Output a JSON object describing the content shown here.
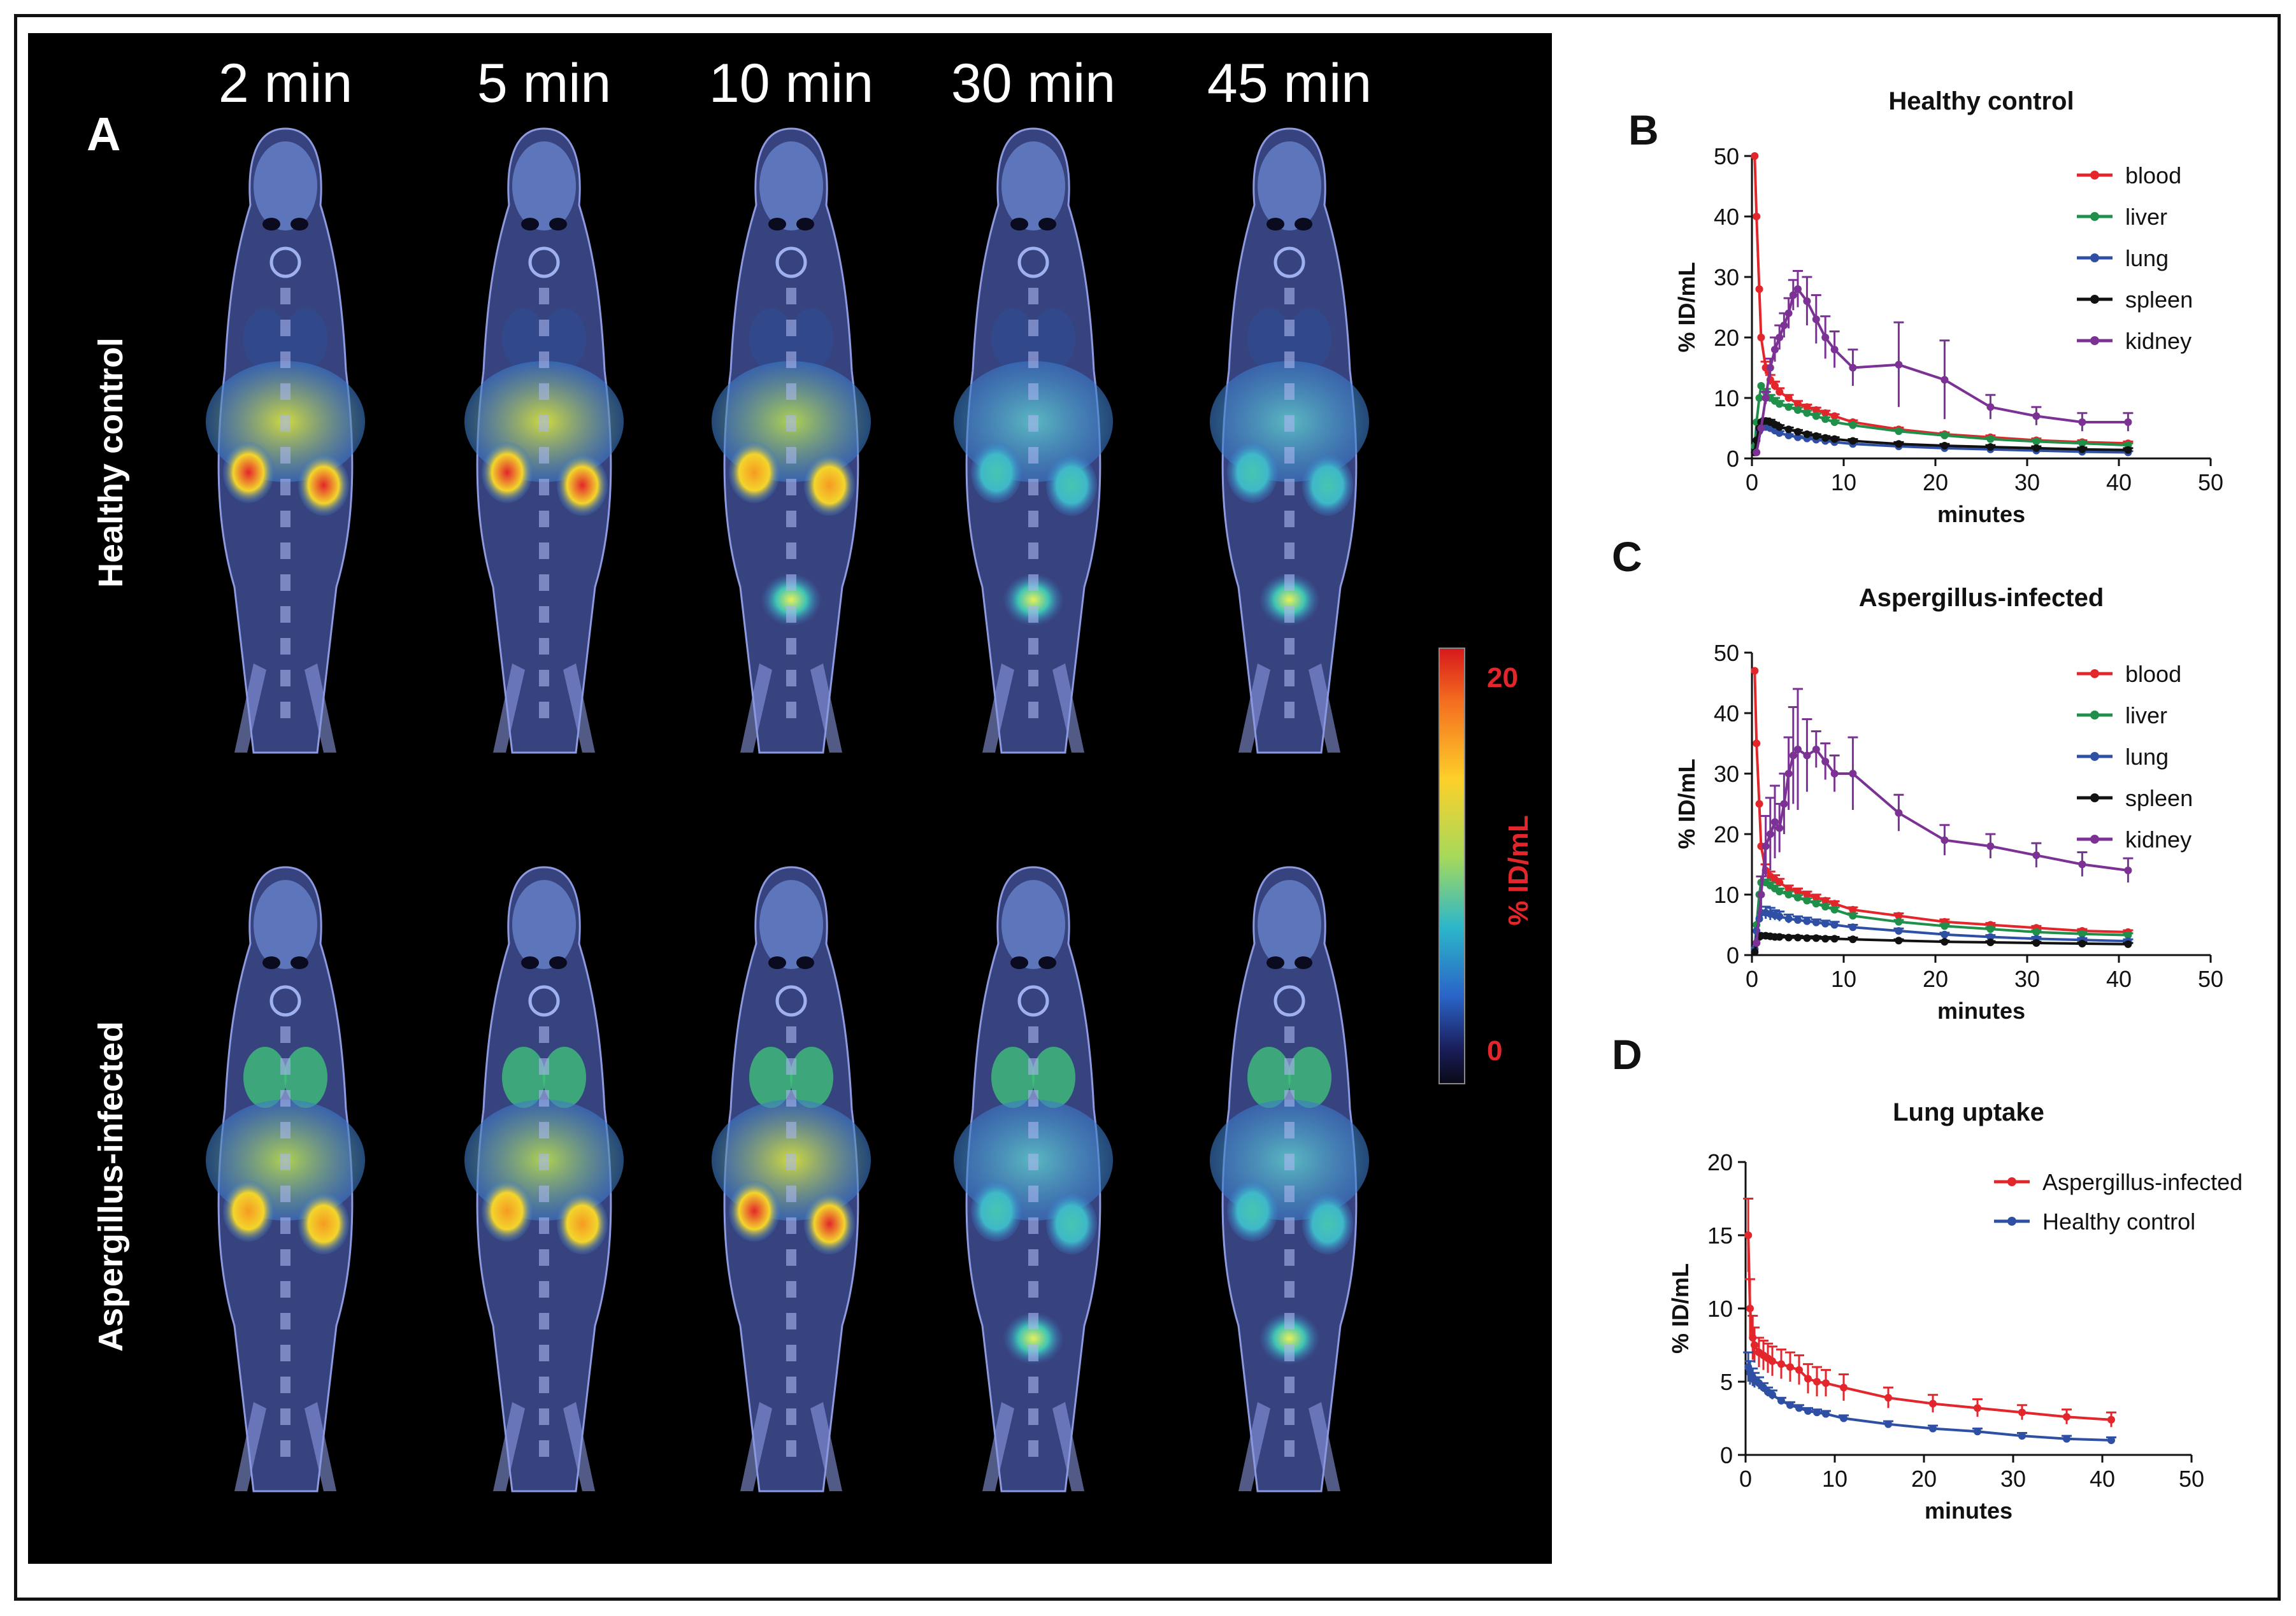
{
  "panel_a": {
    "letter": "A",
    "time_labels": [
      "2 min",
      "5 min",
      "10 min",
      "30 min",
      "45 min"
    ],
    "row_labels": [
      "Healthy control",
      "Aspergillus-infected"
    ],
    "colorbar": {
      "max_label": "20",
      "min_label": "0",
      "unit_label": "% ID/mL"
    },
    "rows": [
      {
        "name": "Healthy control",
        "intensities": [
          1.0,
          0.95,
          0.7,
          0.45,
          0.4
        ],
        "bladder": [
          0,
          0,
          0.5,
          0.6,
          0.65
        ]
      },
      {
        "name": "Aspergillus-infected",
        "intensities": [
          0.75,
          0.7,
          0.95,
          0.6,
          0.5
        ],
        "bladder": [
          0,
          0,
          0,
          0.5,
          0.55
        ]
      }
    ]
  },
  "chart_data": [
    {
      "panel_letter": "B",
      "type": "line",
      "title": "Healthy control",
      "xlabel": "minutes",
      "ylabel": "% ID/mL",
      "xlim": [
        0,
        50
      ],
      "ylim": [
        0,
        50
      ],
      "xticks": [
        "0",
        "10",
        "20",
        "30",
        "40",
        "50"
      ],
      "yticks": [
        "0",
        "10",
        "20",
        "30",
        "40",
        "50"
      ],
      "series": [
        {
          "name": "blood",
          "color": "#e3262b",
          "x": [
            0.3,
            0.5,
            0.8,
            1,
            1.5,
            2,
            2.5,
            3,
            4,
            5,
            6,
            7,
            8,
            9,
            11,
            16,
            21,
            26,
            31,
            36,
            41
          ],
          "y": [
            50,
            40,
            28,
            20,
            15,
            13,
            12,
            11,
            10,
            9,
            8.5,
            8,
            7.5,
            7,
            6,
            4.8,
            4,
            3.5,
            3,
            2.7,
            2.5
          ],
          "err": [
            0,
            0,
            0,
            0,
            1,
            0.8,
            0.7,
            0.6,
            0.5,
            0.5,
            0.4,
            0.4,
            0.4,
            0.3,
            0.3,
            0.3,
            0.3,
            0.3,
            0.3,
            0.3,
            0.3
          ]
        },
        {
          "name": "liver",
          "color": "#1f8f4a",
          "x": [
            0.3,
            0.5,
            0.8,
            1,
            1.5,
            2,
            2.5,
            3,
            4,
            5,
            6,
            7,
            8,
            9,
            11,
            16,
            21,
            26,
            31,
            36,
            41
          ],
          "y": [
            2,
            6,
            10,
            12,
            11,
            10,
            9.5,
            9,
            8.5,
            8,
            7.5,
            7,
            6.5,
            6,
            5.5,
            4.5,
            3.8,
            3.2,
            2.8,
            2.5,
            2.2
          ],
          "err": [
            0,
            0,
            0,
            0,
            0.5,
            0.5,
            0.5,
            0.5,
            0.4,
            0.4,
            0.4,
            0.4,
            0.3,
            0.3,
            0.3,
            0.3,
            0.3,
            0.3,
            0.3,
            0.3,
            0.3
          ]
        },
        {
          "name": "lung",
          "color": "#2e4fa3",
          "x": [
            0.3,
            0.5,
            0.8,
            1,
            1.5,
            2,
            2.5,
            3,
            4,
            5,
            6,
            7,
            8,
            9,
            11,
            16,
            21,
            26,
            31,
            36,
            41
          ],
          "y": [
            1,
            3,
            4.5,
            5,
            5.2,
            5,
            4.6,
            4.2,
            3.8,
            3.5,
            3.3,
            3.1,
            2.9,
            2.7,
            2.4,
            2,
            1.7,
            1.5,
            1.3,
            1.1,
            1.0
          ],
          "err": [
            0,
            0,
            0,
            0,
            0.3,
            0.3,
            0.3,
            0.3,
            0.2,
            0.2,
            0.2,
            0.2,
            0.2,
            0.2,
            0.2,
            0.2,
            0.2,
            0.2,
            0.2,
            0.2,
            0.2
          ]
        },
        {
          "name": "spleen",
          "color": "#111111",
          "x": [
            0.3,
            0.5,
            0.8,
            1,
            1.5,
            2,
            2.5,
            3,
            4,
            5,
            6,
            7,
            8,
            9,
            11,
            16,
            21,
            26,
            31,
            36,
            41
          ],
          "y": [
            1,
            3,
            5,
            6,
            6.2,
            6,
            5.6,
            5.2,
            4.8,
            4.4,
            4,
            3.7,
            3.4,
            3.2,
            2.9,
            2.4,
            2.1,
            1.9,
            1.7,
            1.5,
            1.4
          ],
          "err": [
            0,
            0,
            0,
            0,
            0.4,
            0.4,
            0.3,
            0.3,
            0.3,
            0.3,
            0.3,
            0.3,
            0.3,
            0.3,
            0.3,
            0.3,
            0.3,
            0.3,
            0.3,
            0.3,
            0.3
          ]
        },
        {
          "name": "kidney",
          "color": "#7b3294",
          "x": [
            0.5,
            1,
            1.5,
            2,
            2.5,
            3,
            3.5,
            4,
            4.5,
            5,
            6,
            7,
            8,
            9,
            11,
            16,
            21,
            26,
            31,
            36,
            41
          ],
          "y": [
            1,
            5,
            10,
            15,
            18,
            20,
            22,
            24,
            27,
            28,
            26,
            23,
            20,
            18,
            15,
            15.5,
            13,
            8.5,
            7,
            6,
            6
          ],
          "err": [
            0,
            0,
            1,
            1.5,
            2,
            2,
            2,
            2.5,
            2.5,
            3,
            4,
            4,
            3.5,
            3,
            3,
            7,
            6.5,
            2,
            1.5,
            1.5,
            1.5
          ]
        }
      ]
    },
    {
      "panel_letter": "C",
      "type": "line",
      "title": "Aspergillus-infected",
      "xlabel": "minutes",
      "ylabel": "% ID/mL",
      "xlim": [
        0,
        50
      ],
      "ylim": [
        0,
        50
      ],
      "xticks": [
        "0",
        "10",
        "20",
        "30",
        "40",
        "50"
      ],
      "yticks": [
        "0",
        "10",
        "20",
        "30",
        "40",
        "50"
      ],
      "series": [
        {
          "name": "blood",
          "color": "#e3262b",
          "x": [
            0.3,
            0.5,
            0.8,
            1,
            1.5,
            2,
            2.5,
            3,
            4,
            5,
            6,
            7,
            8,
            9,
            11,
            16,
            21,
            26,
            31,
            36,
            41
          ],
          "y": [
            47,
            35,
            25,
            18,
            14,
            13,
            12.5,
            12,
            11,
            10.5,
            10,
            9.5,
            9,
            8.5,
            7.5,
            6.5,
            5.5,
            5,
            4.5,
            4,
            3.8
          ],
          "err": [
            0,
            0,
            0,
            0,
            1,
            0.8,
            0.7,
            0.6,
            0.5,
            0.5,
            0.5,
            0.5,
            0.4,
            0.4,
            0.4,
            0.4,
            0.4,
            0.3,
            0.3,
            0.3,
            0.3
          ]
        },
        {
          "name": "liver",
          "color": "#1f8f4a",
          "x": [
            0.3,
            0.5,
            0.8,
            1,
            1.5,
            2,
            2.5,
            3,
            4,
            5,
            6,
            7,
            8,
            9,
            11,
            16,
            21,
            26,
            31,
            36,
            41
          ],
          "y": [
            1,
            5,
            10,
            12,
            12,
            11.5,
            11,
            10.5,
            10,
            9.5,
            9,
            8.5,
            8,
            7.5,
            6.5,
            5.5,
            4.8,
            4.3,
            3.8,
            3.5,
            3.3
          ],
          "err": [
            0,
            0,
            0,
            0,
            0.5,
            0.5,
            0.5,
            0.5,
            0.5,
            0.4,
            0.4,
            0.4,
            0.4,
            0.4,
            0.4,
            0.3,
            0.3,
            0.3,
            0.3,
            0.3,
            0.3
          ]
        },
        {
          "name": "lung",
          "color": "#2e4fa3",
          "x": [
            0.3,
            0.5,
            0.8,
            1,
            1.5,
            2,
            2.5,
            3,
            4,
            5,
            6,
            7,
            8,
            9,
            11,
            16,
            21,
            26,
            31,
            36,
            41
          ],
          "y": [
            1,
            4,
            6,
            7,
            7,
            6.8,
            6.6,
            6.4,
            6,
            5.8,
            5.6,
            5.4,
            5.2,
            5,
            4.6,
            4,
            3.4,
            3,
            2.7,
            2.5,
            2.3
          ],
          "err": [
            0,
            0,
            0,
            0,
            1,
            1,
            0.8,
            0.8,
            0.7,
            0.6,
            0.6,
            0.5,
            0.5,
            0.5,
            0.4,
            0.4,
            0.3,
            0.3,
            0.3,
            0.3,
            0.3
          ]
        },
        {
          "name": "spleen",
          "color": "#111111",
          "x": [
            0.3,
            0.5,
            0.8,
            1,
            1.5,
            2,
            2.5,
            3,
            4,
            5,
            6,
            7,
            8,
            9,
            11,
            16,
            21,
            26,
            31,
            36,
            41
          ],
          "y": [
            0.5,
            2,
            3,
            3.2,
            3.2,
            3.1,
            3,
            3,
            2.9,
            2.9,
            2.8,
            2.8,
            2.7,
            2.7,
            2.6,
            2.4,
            2.2,
            2.1,
            2,
            1.9,
            1.8
          ],
          "err": [
            0,
            0,
            0,
            0,
            0.3,
            0.3,
            0.3,
            0.3,
            0.3,
            0.3,
            0.3,
            0.3,
            0.3,
            0.3,
            0.3,
            0.2,
            0.2,
            0.2,
            0.2,
            0.2,
            0.2
          ]
        },
        {
          "name": "kidney",
          "color": "#7b3294",
          "x": [
            0.5,
            1,
            1.5,
            2,
            2.5,
            3,
            3.5,
            4,
            4.5,
            5,
            6,
            7,
            8,
            9,
            11,
            16,
            21,
            26,
            31,
            36,
            41
          ],
          "y": [
            2,
            10,
            18,
            20,
            22,
            21,
            25,
            30,
            33,
            34,
            33,
            34,
            32,
            30,
            30,
            23.5,
            19,
            18,
            16.5,
            15,
            14
          ],
          "err": [
            0,
            3,
            5,
            6,
            6,
            4,
            5,
            6,
            8,
            10,
            6,
            3,
            3,
            3,
            6,
            3,
            2.5,
            2,
            2,
            2,
            2
          ]
        }
      ]
    },
    {
      "panel_letter": "D",
      "type": "line",
      "title": "Lung uptake",
      "xlabel": "minutes",
      "ylabel": "% ID/mL",
      "xlim": [
        0,
        50
      ],
      "ylim": [
        0,
        20
      ],
      "xticks": [
        "0",
        "10",
        "20",
        "30",
        "40",
        "50"
      ],
      "yticks": [
        "0",
        "5",
        "10",
        "15",
        "20"
      ],
      "series": [
        {
          "name": "Aspergillus-infected",
          "color": "#e3262b",
          "x": [
            0.3,
            0.5,
            0.8,
            1,
            1.5,
            2,
            2.5,
            3,
            4,
            5,
            6,
            7,
            8,
            9,
            11,
            16,
            21,
            26,
            31,
            36,
            41
          ],
          "y": [
            15,
            10,
            8,
            7.5,
            7,
            6.8,
            6.6,
            6.4,
            6.2,
            6,
            5.8,
            5.2,
            5,
            4.9,
            4.6,
            3.9,
            3.5,
            3.2,
            2.9,
            2.6,
            2.4
          ],
          "err": [
            2.5,
            2,
            1.5,
            1.2,
            1,
            1,
            1,
            1,
            1,
            1,
            1,
            1,
            1,
            0.9,
            0.9,
            0.7,
            0.6,
            0.6,
            0.5,
            0.5,
            0.5
          ]
        },
        {
          "name": "Healthy control",
          "color": "#2e4fa3",
          "x": [
            0.3,
            0.5,
            0.8,
            1,
            1.5,
            2,
            2.5,
            3,
            4,
            5,
            6,
            7,
            8,
            9,
            11,
            16,
            21,
            26,
            31,
            36,
            41
          ],
          "y": [
            6,
            5.6,
            5.3,
            5.1,
            4.9,
            4.6,
            4.3,
            4.1,
            3.7,
            3.4,
            3.2,
            3.0,
            2.9,
            2.8,
            2.5,
            2.1,
            1.8,
            1.6,
            1.3,
            1.1,
            1.0
          ],
          "err": [
            1,
            0.8,
            0.6,
            0.5,
            0.4,
            0.3,
            0.3,
            0.3,
            0.2,
            0.2,
            0.2,
            0.2,
            0.2,
            0.2,
            0.2,
            0.2,
            0.2,
            0.2,
            0.2,
            0.2,
            0.2
          ]
        }
      ]
    }
  ]
}
